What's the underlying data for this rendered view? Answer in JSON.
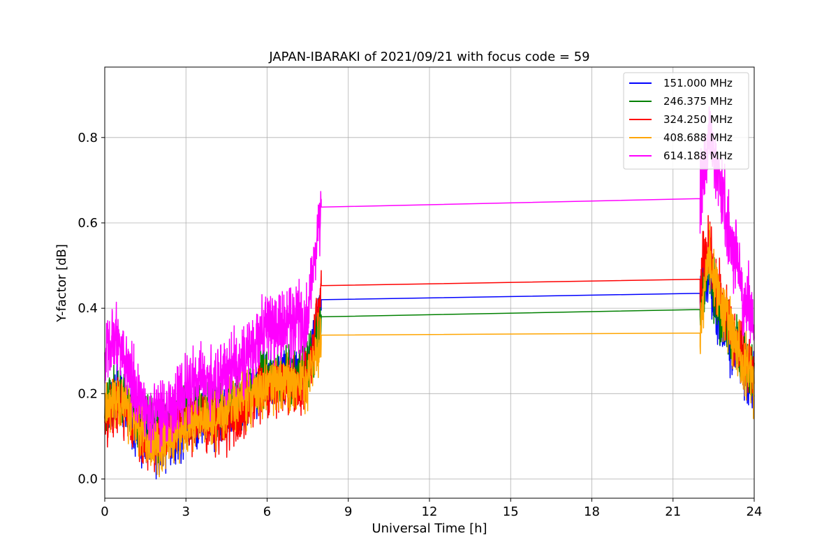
{
  "chart_data": {
    "type": "line",
    "title": "JAPAN-IBARAKI of 2021/09/21 with focus code = 59",
    "xlabel": "Universal Time [h]",
    "ylabel": "Y-factor [dB]",
    "xlim": [
      0,
      24
    ],
    "ylim": [
      -0.045,
      0.965
    ],
    "xticks": [
      0,
      3,
      6,
      9,
      12,
      15,
      18,
      21,
      24
    ],
    "yticks": [
      0.0,
      0.2,
      0.4,
      0.6,
      0.8
    ],
    "grid": true,
    "legend_position": "top-right",
    "series": [
      {
        "name": "151.000 MHz",
        "color": "#0000ff",
        "x": [
          0,
          0.5,
          1,
          1.5,
          2,
          2.5,
          3,
          3.5,
          4,
          4.5,
          5,
          5.5,
          6,
          6.5,
          7,
          7.5,
          8,
          22,
          22.3,
          22.6,
          23,
          23.3,
          23.6,
          24
        ],
        "y": [
          0.16,
          0.2,
          0.14,
          0.08,
          0.07,
          0.1,
          0.12,
          0.13,
          0.13,
          0.15,
          0.17,
          0.21,
          0.24,
          0.24,
          0.24,
          0.25,
          0.42,
          0.435,
          0.48,
          0.4,
          0.33,
          0.3,
          0.25,
          0.22
        ]
      },
      {
        "name": "246.375 MHz",
        "color": "#008000",
        "x": [
          0,
          0.5,
          1,
          1.5,
          2,
          2.5,
          3,
          3.5,
          4,
          4.5,
          5,
          5.5,
          6,
          6.5,
          7,
          7.5,
          8,
          22,
          22.3,
          22.6,
          23,
          23.3,
          23.6,
          24
        ],
        "y": [
          0.17,
          0.21,
          0.16,
          0.12,
          0.12,
          0.15,
          0.17,
          0.17,
          0.16,
          0.17,
          0.19,
          0.22,
          0.24,
          0.24,
          0.25,
          0.26,
          0.38,
          0.397,
          0.5,
          0.42,
          0.35,
          0.32,
          0.27,
          0.23
        ]
      },
      {
        "name": "324.250 MHz",
        "color": "#ff0000",
        "x": [
          0,
          0.5,
          1,
          1.5,
          2,
          2.5,
          3,
          3.5,
          4,
          4.5,
          5,
          5.5,
          6,
          6.5,
          7,
          7.5,
          8,
          22,
          22.3,
          22.6,
          23,
          23.3,
          23.6,
          24
        ],
        "y": [
          0.15,
          0.18,
          0.13,
          0.09,
          0.08,
          0.11,
          0.12,
          0.13,
          0.12,
          0.13,
          0.15,
          0.19,
          0.22,
          0.22,
          0.22,
          0.23,
          0.453,
          0.468,
          0.55,
          0.45,
          0.38,
          0.33,
          0.28,
          0.24
        ]
      },
      {
        "name": "408.688 MHz",
        "color": "#ffa500",
        "x": [
          0,
          0.5,
          1,
          1.5,
          2,
          2.5,
          3,
          3.5,
          4,
          4.5,
          5,
          5.5,
          6,
          6.5,
          7,
          7.5,
          8,
          22,
          22.3,
          22.6,
          23,
          23.3,
          23.6,
          24
        ],
        "y": [
          0.16,
          0.2,
          0.14,
          0.1,
          0.08,
          0.1,
          0.12,
          0.14,
          0.14,
          0.16,
          0.18,
          0.2,
          0.22,
          0.22,
          0.22,
          0.23,
          0.337,
          0.342,
          0.52,
          0.45,
          0.38,
          0.32,
          0.27,
          0.23
        ]
      },
      {
        "name": "614.188 MHz",
        "color": "#ff00ff",
        "x": [
          0,
          0.5,
          1,
          1.5,
          2,
          2.5,
          3,
          3.5,
          4,
          4.5,
          5,
          5.5,
          6,
          6.5,
          7,
          7.5,
          8,
          22,
          22.3,
          22.6,
          23,
          23.3,
          23.6,
          24
        ],
        "y": [
          0.3,
          0.33,
          0.24,
          0.17,
          0.14,
          0.17,
          0.21,
          0.23,
          0.22,
          0.24,
          0.27,
          0.32,
          0.35,
          0.35,
          0.37,
          0.38,
          0.637,
          0.657,
          0.8,
          0.73,
          0.62,
          0.52,
          0.43,
          0.38
        ]
      }
    ]
  }
}
